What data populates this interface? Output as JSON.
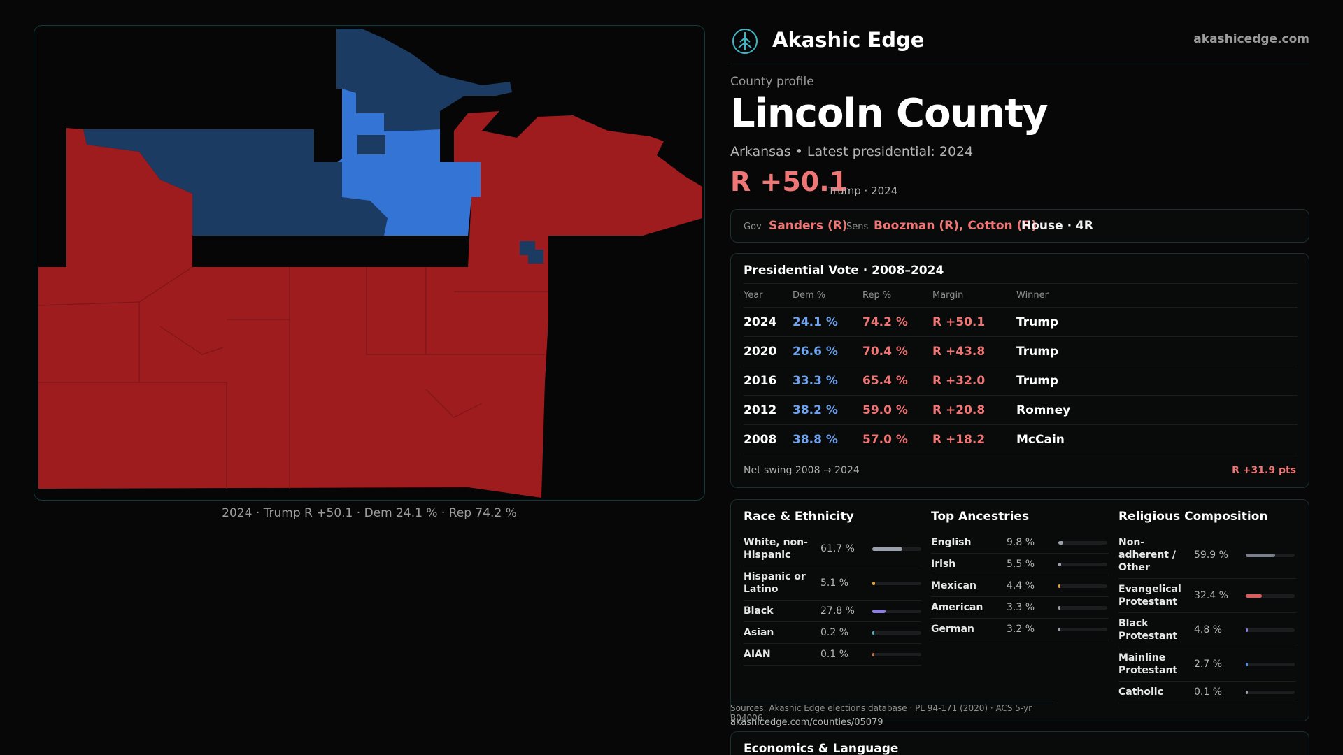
{
  "map": {
    "caption": "2024 · Trump R +50.1 · Dem 24.1 % · Rep 74.2 %",
    "colors": {
      "rep": "#9e1b1e",
      "dem_dark": "#1b3b63",
      "dem_light": "#3474d4"
    }
  },
  "brand": {
    "name": "Akashic Edge",
    "url": "akashicedge.com",
    "logo_icon": "tree-logo-icon"
  },
  "header": {
    "eyebrow": "County profile",
    "title": "Lincoln County",
    "subline": "Arkansas • Latest presidential: 2024",
    "margin": "R +50.1",
    "margin_sub": "Trump · 2024"
  },
  "officials": {
    "gov_label": "Gov",
    "gov_value": "Sanders (R)",
    "sens_label": "Sens",
    "sens_value": "Boozman (R), Cotton (R)",
    "house": "House · 4R"
  },
  "votes": {
    "title": "Presidential Vote · 2008–2024",
    "headers": [
      "Year",
      "Dem %",
      "Rep %",
      "Margin",
      "Winner"
    ],
    "rows": [
      {
        "year": "2024",
        "dem": "24.1 %",
        "rep": "74.2 %",
        "margin": "R +50.1",
        "winner": "Trump"
      },
      {
        "year": "2020",
        "dem": "26.6 %",
        "rep": "70.4 %",
        "margin": "R +43.8",
        "winner": "Trump"
      },
      {
        "year": "2016",
        "dem": "33.3 %",
        "rep": "65.4 %",
        "margin": "R +32.0",
        "winner": "Trump"
      },
      {
        "year": "2012",
        "dem": "38.2 %",
        "rep": "59.0 %",
        "margin": "R +20.8",
        "winner": "Romney"
      },
      {
        "year": "2008",
        "dem": "38.8 %",
        "rep": "57.0 %",
        "margin": "R +18.2",
        "winner": "McCain"
      }
    ],
    "swing_label": "Net swing 2008 → 2024",
    "swing_value": "R +31.9 pts"
  },
  "race": {
    "title": "Race & Ethnicity",
    "items": [
      {
        "label": "White, non-Hispanic",
        "value": "61.7 %",
        "pct": 61.7,
        "color": "#9aa0ac"
      },
      {
        "label": "Hispanic or Latino",
        "value": "5.1 %",
        "pct": 5.1,
        "color": "#e0a030"
      },
      {
        "label": "Black",
        "value": "27.8 %",
        "pct": 27.8,
        "color": "#8b7fe0"
      },
      {
        "label": "Asian",
        "value": "0.2 %",
        "pct": 0.2,
        "color": "#4fb0c0"
      },
      {
        "label": "AIAN",
        "value": "0.1 %",
        "pct": 0.1,
        "color": "#c07040"
      }
    ]
  },
  "ancestry": {
    "title": "Top Ancestries",
    "items": [
      {
        "label": "English",
        "value": "9.8 %",
        "pct": 9.8,
        "color": "#9aa0ac"
      },
      {
        "label": "Irish",
        "value": "5.5 %",
        "pct": 5.5,
        "color": "#9aa0ac"
      },
      {
        "label": "Mexican",
        "value": "4.4 %",
        "pct": 4.4,
        "color": "#e0a030"
      },
      {
        "label": "American",
        "value": "3.3 %",
        "pct": 3.3,
        "color": "#9aa0ac"
      },
      {
        "label": "German",
        "value": "3.2 %",
        "pct": 3.2,
        "color": "#9aa0ac"
      }
    ]
  },
  "religion": {
    "title": "Religious Composition",
    "items": [
      {
        "label": "Non-adherent / Other",
        "value": "59.9 %",
        "pct": 59.9,
        "color": "#7a7f88"
      },
      {
        "label": "Evangelical Protestant",
        "value": "32.4 %",
        "pct": 32.4,
        "color": "#e05a5a"
      },
      {
        "label": "Black Protestant",
        "value": "4.8 %",
        "pct": 4.8,
        "color": "#8b7fe0"
      },
      {
        "label": "Mainline Protestant",
        "value": "2.7 %",
        "pct": 2.7,
        "color": "#4a8fe0"
      },
      {
        "label": "Catholic",
        "value": "0.1 %",
        "pct": 0.1,
        "color": "#9aa0ac"
      }
    ]
  },
  "footer": {
    "sources": "Sources: Akashic Edge elections database · PL 94-171 (2020) · ACS 5-yr B04006",
    "url": "akashicedge.com/counties/05079"
  },
  "econ": {
    "title": "Economics & Language"
  }
}
